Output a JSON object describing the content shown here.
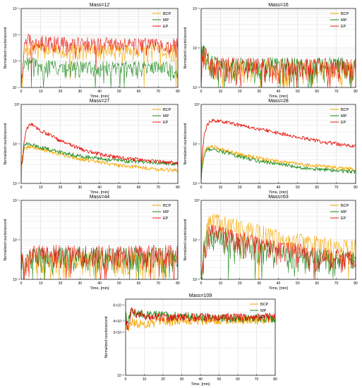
{
  "colors": {
    "BCP": "#f5a800",
    "MP": "#1e8c1e",
    "EP": "#e8140c",
    "grid": "#d6d6d6",
    "axis": "#000000"
  },
  "legend_labels": [
    "BCP",
    "MP",
    "EP"
  ],
  "x_axis_label": "Time, [min]",
  "y_axis_label": "Normalized counts/second",
  "chart_data": [
    {
      "type": "line",
      "title": "Mass=12",
      "xlabel": "Time, [min]",
      "ylabel": "Normalized counts/second",
      "xlim": [
        0,
        80
      ],
      "x_ticks": [
        0,
        10,
        20,
        30,
        40,
        50,
        60,
        70,
        80
      ],
      "yscale": "log",
      "ylim_exp": [
        -4,
        -1
      ],
      "y_ticks_exp": [
        -4,
        -3,
        -2,
        -1
      ],
      "grid": true,
      "legend_position": "top-right",
      "noisy": true,
      "series": [
        {
          "name": "BCP",
          "x": [
            0,
            0.5,
            1.5,
            3,
            5,
            7,
            10,
            20,
            40,
            60,
            80
          ],
          "y": [
            0.0005,
            0.0002,
            0.0018,
            0.003,
            0.0035,
            0.0032,
            0.003,
            0.0028,
            0.0028,
            0.0027,
            0.0027
          ]
        },
        {
          "name": "MP",
          "x": [
            0,
            0.5,
            1.5,
            3,
            5,
            7,
            10,
            20,
            40,
            60,
            80
          ],
          "y": [
            0.0004,
            0.0002,
            0.0006,
            0.0009,
            0.0009,
            0.0008,
            0.0007,
            0.0006,
            0.0006,
            0.0006,
            0.0006
          ]
        },
        {
          "name": "EP",
          "x": [
            0,
            0.5,
            1.5,
            3,
            5,
            7,
            10,
            20,
            40,
            60,
            80
          ],
          "y": [
            0.0005,
            0.0002,
            0.003,
            0.007,
            0.0075,
            0.0065,
            0.006,
            0.0052,
            0.0048,
            0.0046,
            0.0045
          ]
        }
      ]
    },
    {
      "type": "line",
      "title": "Mass=16",
      "xlabel": "Time, [min]",
      "ylabel": "Normalized counts/second",
      "xlim": [
        0,
        80
      ],
      "x_ticks": [
        0,
        10,
        20,
        30,
        40,
        50,
        60,
        70,
        80
      ],
      "yscale": "log",
      "ylim_exp": [
        -3,
        -1
      ],
      "y_ticks_exp": [
        -3,
        -2,
        -1
      ],
      "grid": true,
      "legend_position": "top-right",
      "noisy": true,
      "series": [
        {
          "name": "BCP",
          "x": [
            0,
            0.3,
            1,
            2,
            4,
            6,
            10,
            20,
            40,
            60,
            80
          ],
          "y": [
            0.0012,
            0.006,
            0.008,
            0.006,
            0.004,
            0.0035,
            0.003,
            0.003,
            0.003,
            0.003,
            0.003
          ]
        },
        {
          "name": "MP",
          "x": [
            0,
            0.3,
            1,
            2,
            4,
            6,
            10,
            20,
            40,
            60,
            80
          ],
          "y": [
            0.0012,
            0.007,
            0.0085,
            0.0065,
            0.0045,
            0.004,
            0.0035,
            0.0035,
            0.0035,
            0.0035,
            0.0035
          ]
        },
        {
          "name": "EP",
          "x": [
            0,
            0.3,
            1,
            2,
            4,
            6,
            10,
            20,
            40,
            60,
            80
          ],
          "y": [
            0.0012,
            0.007,
            0.009,
            0.007,
            0.005,
            0.004,
            0.0035,
            0.0035,
            0.0035,
            0.0035,
            0.0035
          ]
        }
      ]
    },
    {
      "type": "line",
      "title": "Mass=27",
      "xlabel": "Time, [min]",
      "ylabel": "Normalized counts/second",
      "xlim": [
        0,
        80
      ],
      "x_ticks": [
        0,
        10,
        20,
        30,
        40,
        50,
        60,
        70,
        80
      ],
      "yscale": "log",
      "ylim_exp": [
        -2,
        0
      ],
      "y_ticks_exp": [
        -2,
        -1,
        0
      ],
      "grid": true,
      "legend_position": "top-right",
      "noisy": false,
      "series": [
        {
          "name": "BCP",
          "x": [
            0,
            0.5,
            1.5,
            3,
            5,
            7,
            10,
            20,
            30,
            40,
            50,
            60,
            70,
            80
          ],
          "y": [
            0.012,
            0.05,
            0.07,
            0.08,
            0.085,
            0.08,
            0.075,
            0.055,
            0.042,
            0.034,
            0.029,
            0.026,
            0.023,
            0.021
          ]
        },
        {
          "name": "MP",
          "x": [
            0,
            0.5,
            1.5,
            3,
            5,
            7,
            10,
            20,
            30,
            40,
            50,
            60,
            70,
            80
          ],
          "y": [
            0.03,
            0.035,
            0.09,
            0.1,
            0.095,
            0.09,
            0.082,
            0.062,
            0.05,
            0.042,
            0.038,
            0.035,
            0.033,
            0.031
          ]
        },
        {
          "name": "EP",
          "x": [
            0,
            0.5,
            1.5,
            3,
            5,
            7,
            10,
            20,
            30,
            40,
            50,
            60,
            70,
            80
          ],
          "y": [
            0.03,
            0.03,
            0.12,
            0.25,
            0.32,
            0.28,
            0.22,
            0.12,
            0.075,
            0.055,
            0.045,
            0.04,
            0.036,
            0.033
          ]
        }
      ]
    },
    {
      "type": "line",
      "title": "Mass=28",
      "xlabel": "Time, [min]",
      "ylabel": "Normalized counts/second",
      "xlim": [
        0,
        80
      ],
      "x_ticks": [
        0,
        10,
        20,
        30,
        40,
        50,
        60,
        70,
        80
      ],
      "yscale": "log",
      "ylim_exp": [
        -2,
        0
      ],
      "y_ticks_exp": [
        -2,
        -1,
        0
      ],
      "grid": true,
      "legend_position": "top-right",
      "noisy": false,
      "series": [
        {
          "name": "BCP",
          "x": [
            0,
            0.5,
            1.5,
            3,
            5,
            7,
            10,
            20,
            30,
            40,
            50,
            60,
            70,
            80
          ],
          "y": [
            0.012,
            0.03,
            0.06,
            0.08,
            0.085,
            0.082,
            0.075,
            0.055,
            0.043,
            0.036,
            0.031,
            0.028,
            0.025,
            0.023
          ]
        },
        {
          "name": "MP",
          "x": [
            0,
            0.5,
            1.5,
            3,
            5,
            7,
            10,
            20,
            30,
            40,
            50,
            60,
            70,
            80
          ],
          "y": [
            0.012,
            0.025,
            0.05,
            0.07,
            0.075,
            0.072,
            0.066,
            0.048,
            0.037,
            0.031,
            0.026,
            0.023,
            0.021,
            0.02
          ]
        },
        {
          "name": "EP",
          "x": [
            0,
            0.5,
            1.5,
            3,
            5,
            7,
            10,
            20,
            30,
            40,
            50,
            60,
            70,
            80
          ],
          "y": [
            0.02,
            0.05,
            0.15,
            0.3,
            0.38,
            0.39,
            0.38,
            0.3,
            0.24,
            0.19,
            0.15,
            0.12,
            0.1,
            0.085
          ]
        }
      ]
    },
    {
      "type": "line",
      "title": "Mass=44",
      "xlabel": "Time, [min]",
      "ylabel": "Normalized counts/second",
      "xlim": [
        0,
        80
      ],
      "x_ticks": [
        0,
        10,
        20,
        30,
        40,
        50,
        60,
        70,
        80
      ],
      "yscale": "log",
      "ylim_exp": [
        -3,
        -1
      ],
      "y_ticks_exp": [
        -3,
        -2,
        -1
      ],
      "grid": true,
      "legend_position": "top-right",
      "noisy": true,
      "series": [
        {
          "name": "BCP",
          "x": [
            0,
            0.5,
            1.5,
            3,
            5,
            7,
            10,
            20,
            40,
            60,
            80
          ],
          "y": [
            0.006,
            0.004,
            0.002,
            0.003,
            0.003,
            0.003,
            0.003,
            0.003,
            0.003,
            0.003,
            0.003
          ]
        },
        {
          "name": "MP",
          "x": [
            0,
            0.5,
            1.5,
            3,
            5,
            7,
            10,
            20,
            40,
            60,
            80
          ],
          "y": [
            0.006,
            0.005,
            0.0025,
            0.0035,
            0.004,
            0.004,
            0.004,
            0.004,
            0.004,
            0.004,
            0.004
          ]
        },
        {
          "name": "EP",
          "x": [
            0,
            0.5,
            1.5,
            3,
            5,
            7,
            10,
            20,
            40,
            60,
            80
          ],
          "y": [
            0.006,
            0.003,
            0.0015,
            0.004,
            0.005,
            0.005,
            0.005,
            0.0045,
            0.0045,
            0.0045,
            0.0045
          ]
        }
      ]
    },
    {
      "type": "line",
      "title": "Mass=63",
      "xlabel": "Time, [min]",
      "ylabel": "Normalized counts/second",
      "xlim": [
        0,
        80
      ],
      "x_ticks": [
        0,
        10,
        20,
        30,
        40,
        50,
        60,
        70,
        80
      ],
      "yscale": "log",
      "ylim_exp": [
        -2,
        0
      ],
      "y_ticks_exp": [
        -2,
        -1,
        0
      ],
      "grid": true,
      "legend_position": "top-right",
      "noisy": true,
      "series": [
        {
          "name": "BCP",
          "x": [
            0,
            0.5,
            1.5,
            3,
            5,
            7,
            10,
            20,
            30,
            40,
            50,
            60,
            70,
            80
          ],
          "y": [
            0.012,
            0.015,
            0.1,
            0.25,
            0.3,
            0.3,
            0.28,
            0.2,
            0.15,
            0.12,
            0.095,
            0.08,
            0.068,
            0.06
          ]
        },
        {
          "name": "MP",
          "x": [
            0,
            0.5,
            1.5,
            3,
            5,
            7,
            10,
            20,
            30,
            40,
            50,
            60,
            70,
            80
          ],
          "y": [
            0.012,
            0.015,
            0.06,
            0.12,
            0.13,
            0.12,
            0.11,
            0.08,
            0.06,
            0.05,
            0.042,
            0.036,
            0.032,
            0.03
          ]
        },
        {
          "name": "EP",
          "x": [
            0,
            0.5,
            1.5,
            3,
            5,
            7,
            10,
            20,
            30,
            40,
            50,
            60,
            70,
            80
          ],
          "y": [
            0.012,
            0.015,
            0.05,
            0.12,
            0.15,
            0.15,
            0.14,
            0.1,
            0.075,
            0.06,
            0.05,
            0.042,
            0.036,
            0.032
          ]
        }
      ]
    },
    {
      "type": "line",
      "title": "Mass=109",
      "xlabel": "Time, [min]",
      "ylabel": "Normalized counts/second",
      "xlim": [
        0,
        80
      ],
      "x_ticks": [
        0,
        10,
        20,
        30,
        40,
        50,
        60,
        70,
        80
      ],
      "yscale": "log",
      "ylim": [
        0.01,
        0.07
      ],
      "y_ticks": [
        0.01,
        0.03,
        0.04,
        0.06
      ],
      "y_tick_labels": [
        "10⁻²",
        "3×10⁻²",
        "4×10⁻²",
        "6×10⁻²"
      ],
      "grid": true,
      "legend_position": "top-right",
      "noisy": false,
      "series": [
        {
          "name": "BCP",
          "x": [
            0,
            1,
            2,
            3,
            5,
            7,
            10,
            15,
            20,
            30,
            40,
            50,
            60,
            70,
            80
          ],
          "y": [
            0.042,
            0.032,
            0.037,
            0.04,
            0.038,
            0.037,
            0.037,
            0.038,
            0.039,
            0.04,
            0.041,
            0.041,
            0.041,
            0.041,
            0.041
          ]
        },
        {
          "name": "MP",
          "x": [
            0,
            1,
            2,
            3,
            5,
            7,
            10,
            15,
            20,
            30,
            40,
            50,
            60,
            70,
            80
          ],
          "y": [
            0.05,
            0.035,
            0.045,
            0.05,
            0.049,
            0.048,
            0.048,
            0.047,
            0.046,
            0.045,
            0.044,
            0.043,
            0.043,
            0.043,
            0.043
          ]
        },
        {
          "name": "EP",
          "x": [
            0,
            1,
            2,
            3,
            5,
            7,
            10,
            15,
            20,
            30,
            40,
            50,
            60,
            70,
            80
          ],
          "y": [
            0.045,
            0.032,
            0.04,
            0.052,
            0.05,
            0.047,
            0.045,
            0.044,
            0.044,
            0.044,
            0.044,
            0.044,
            0.044,
            0.044,
            0.044
          ]
        }
      ]
    }
  ]
}
